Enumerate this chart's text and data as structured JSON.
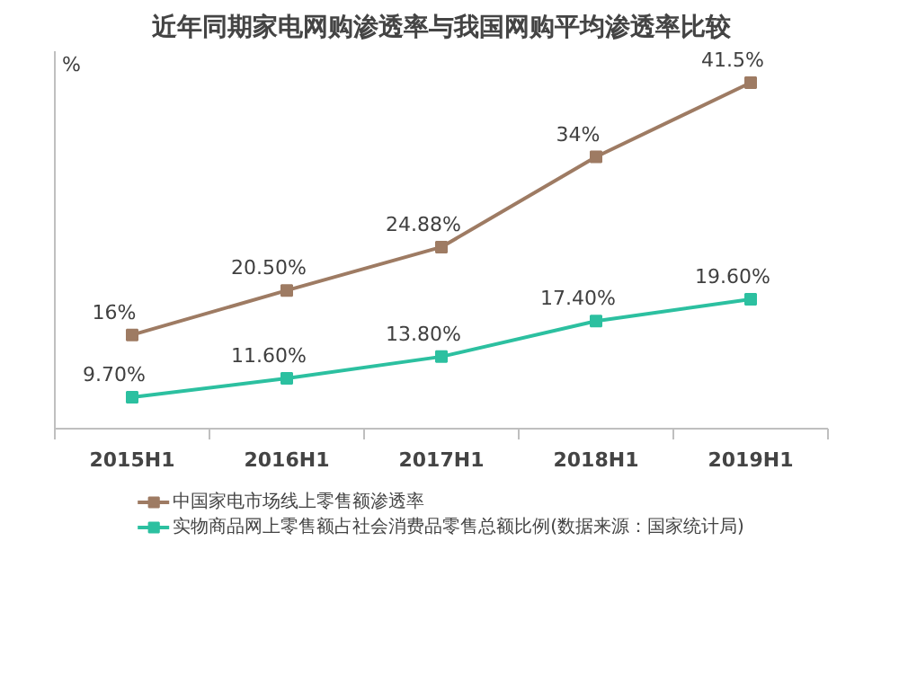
{
  "chart_data": {
    "type": "line",
    "title": "近年同期家电网购渗透率与我国网购平均渗透率比较",
    "ylabel": "%",
    "categories": [
      "2015H1",
      "2016H1",
      "2017H1",
      "2018H1",
      "2019H1"
    ],
    "series": [
      {
        "name": "中国家电市场线上零售额渗透率",
        "color": "#9e7b63",
        "values": [
          16,
          20.5,
          24.88,
          34,
          41.5
        ],
        "value_labels": [
          "16%",
          "20.50%",
          "24.88%",
          "34%",
          "41.5%"
        ]
      },
      {
        "name": "实物商品网上零售额占社会消费品零售总额比例(数据来源：国家统计局)",
        "color": "#2cc0a0",
        "values": [
          9.7,
          11.6,
          13.8,
          17.4,
          19.6
        ],
        "value_labels": [
          "9.70%",
          "11.60%",
          "13.80%",
          "17.40%",
          "19.60%"
        ]
      }
    ],
    "marker": "square",
    "line_style": "solid",
    "grid": false,
    "legend": "bottom",
    "tick_labels": "x"
  }
}
